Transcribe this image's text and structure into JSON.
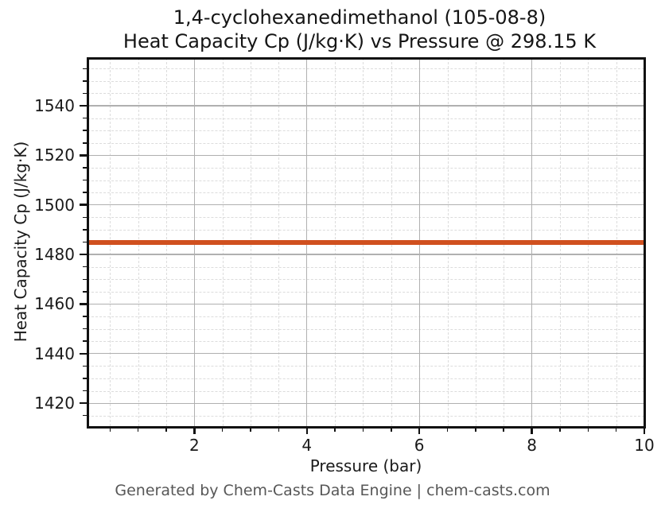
{
  "figure": {
    "footer": "Generated by Chem-Casts Data Engine | chem-casts.com"
  },
  "chart_data": {
    "type": "line",
    "title_line1": "1,4-cyclohexanedimethanol (105-08-8)",
    "title_line2": "Heat Capacity Cp (J/kg·K) vs Pressure @ 298.15 K",
    "xlabel": "Pressure (bar)",
    "ylabel": "Heat Capacity Cp (J/kg·K)",
    "xlim": [
      0.1,
      10.0
    ],
    "ylim": [
      1410.75,
      1559.25
    ],
    "x_major_ticks": [
      2,
      4,
      6,
      8,
      10
    ],
    "x_minor_tick_step": 0.5,
    "y_major_ticks": [
      1420,
      1440,
      1460,
      1480,
      1500,
      1520,
      1540
    ],
    "y_minor_tick_step": 5,
    "grid": "major-solid-and-minor-dashed",
    "legend": "none",
    "series": [
      {
        "name": "Heat Capacity Cp",
        "color": "#d0501f",
        "x": [
          0.1,
          10.0
        ],
        "y": [
          1485.0,
          1485.0
        ]
      }
    ]
  },
  "colors": {
    "line": "#d0501f",
    "grid_major": "#b0b0b0",
    "grid_minor": "#dcdcdc",
    "spine": "#111111",
    "tick": "#111111",
    "text": "#1a1a1a",
    "title_text": "#151515",
    "footer_text": "#575757",
    "background": "#ffffff"
  }
}
